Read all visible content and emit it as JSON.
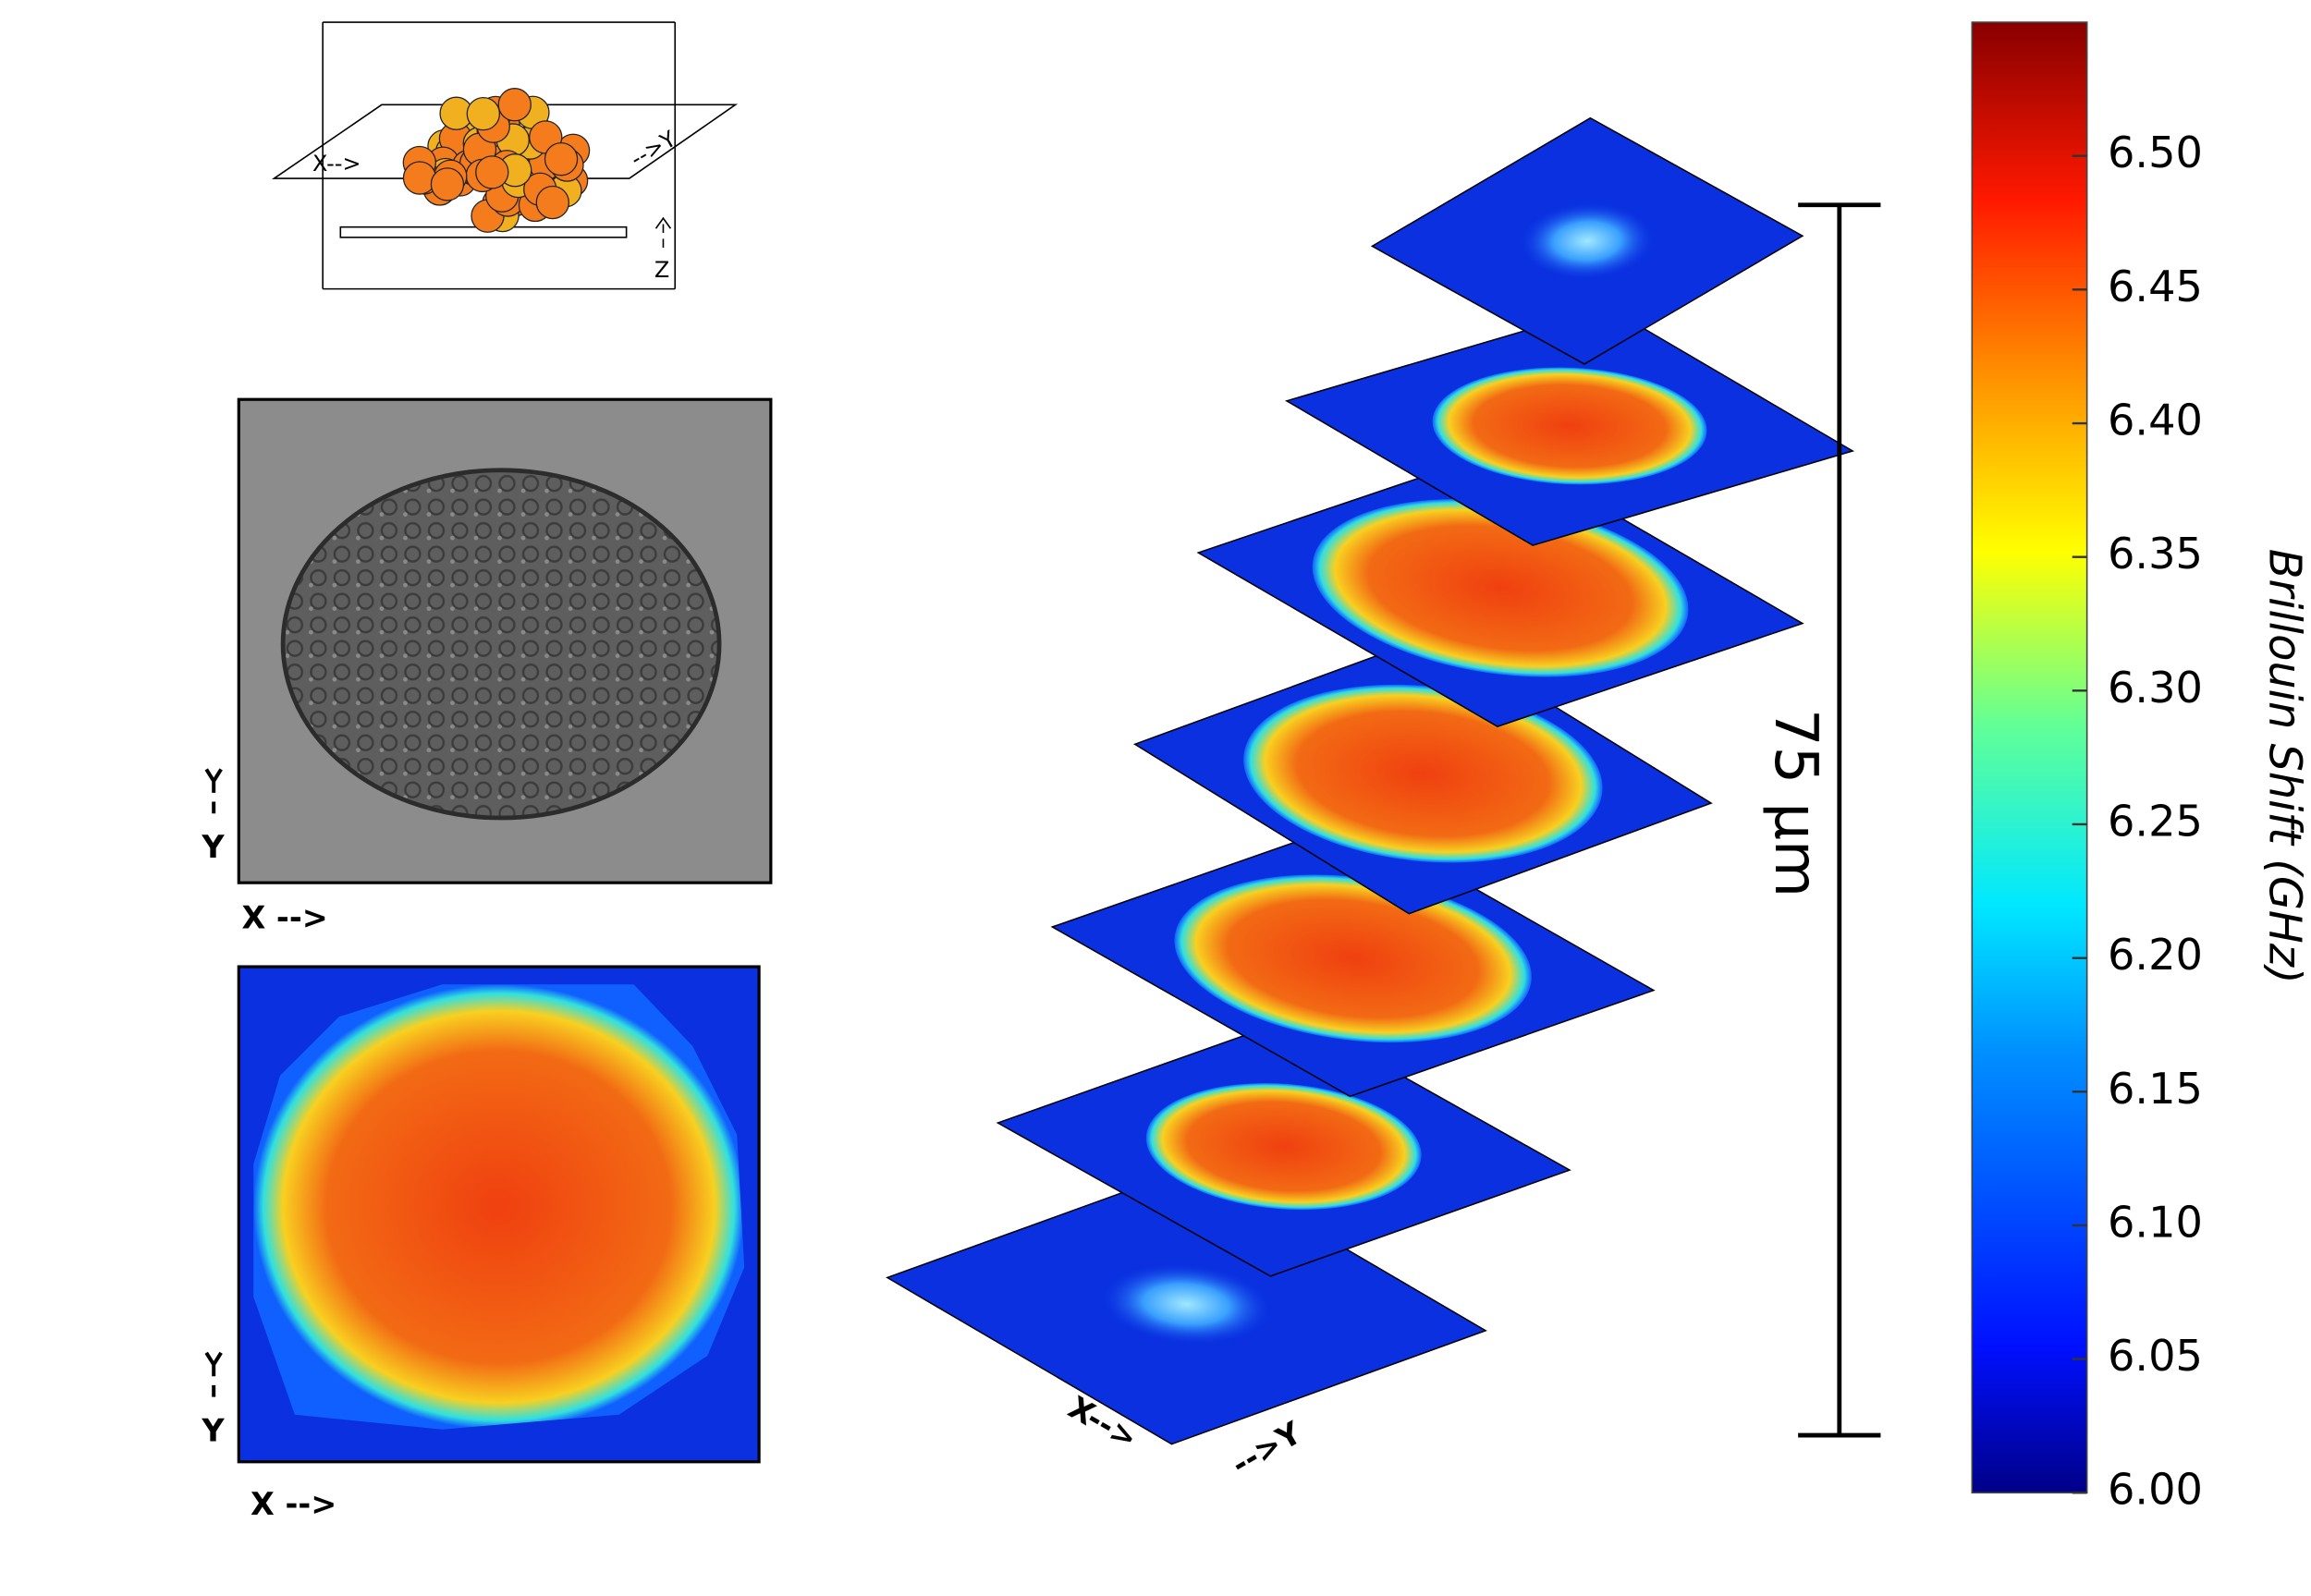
{
  "schematic": {
    "x_label": "X-->",
    "y_label": "-->Y",
    "z_label": "Z"
  },
  "bright_field": {
    "y_label": "Y",
    "x_label": "X -->"
  },
  "brillouin_map": {
    "y_label": "Y",
    "x_label": "X -->"
  },
  "stack": {
    "x_label": "X-->",
    "y_label": "-->Y",
    "scale_bar": "75 µm"
  },
  "colorbar": {
    "label": "Brillouin Shift (GHz)",
    "lim": [
      6.0,
      6.55
    ],
    "ticks": [
      {
        "value": 6.0,
        "label": "6.00"
      },
      {
        "value": 6.05,
        "label": "6.05"
      },
      {
        "value": 6.1,
        "label": "6.10"
      },
      {
        "value": 6.15,
        "label": "6.15"
      },
      {
        "value": 6.2,
        "label": "6.20"
      },
      {
        "value": 6.25,
        "label": "6.25"
      },
      {
        "value": 6.3,
        "label": "6.30"
      },
      {
        "value": 6.35,
        "label": "6.35"
      },
      {
        "value": 6.4,
        "label": "6.40"
      },
      {
        "value": 6.45,
        "label": "6.45"
      },
      {
        "value": 6.5,
        "label": "6.50"
      }
    ]
  }
}
